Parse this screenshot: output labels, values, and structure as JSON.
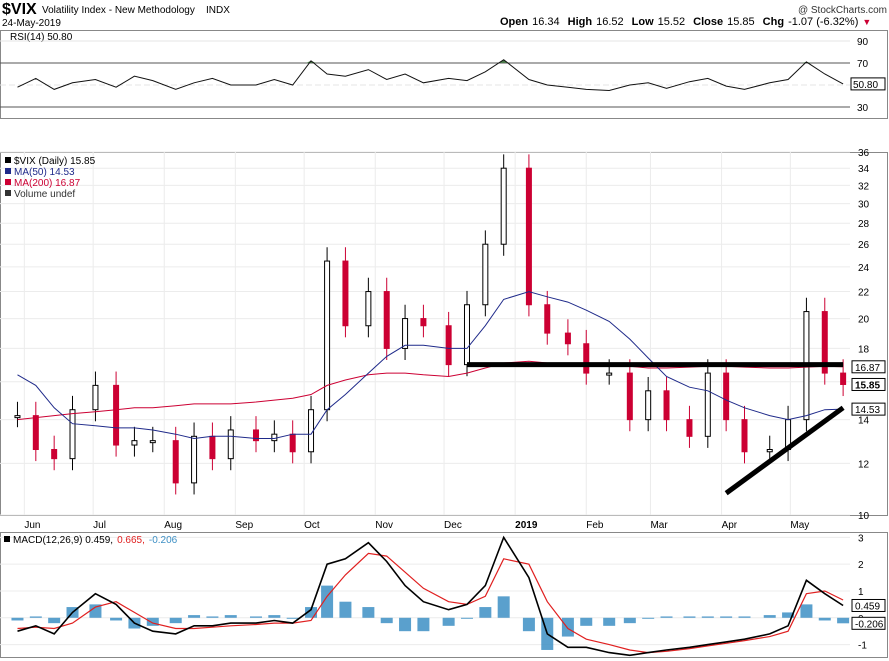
{
  "header": {
    "symbol": "$VIX",
    "name": "Volatility Index - New Methodology",
    "exchange": "INDX",
    "date": "24-May-2019",
    "watermark": "@ StockCharts.com",
    "ohlc": [
      {
        "label": "Open",
        "value": "16.34"
      },
      {
        "label": "High",
        "value": "16.52"
      },
      {
        "label": "Low",
        "value": "15.52"
      },
      {
        "label": "Close",
        "value": "15.85"
      },
      {
        "label": "Chg",
        "value": "-1.07 (-6.32%)"
      }
    ],
    "chg_marker": "▼"
  },
  "colors": {
    "price_up": "#000000",
    "price_down": "#cc0033",
    "ma50": "#1f2a8a",
    "ma200": "#cc0033",
    "rsi_fill": "#4a7a4a",
    "macd_hist": "#3d8fc4",
    "macd_signal": "#e02020",
    "macd_line": "#000000"
  },
  "chart_data": [
    {
      "type": "line",
      "panel": "rsi",
      "title": "RSI(14) 50.80",
      "last_value_label": "50.80",
      "ylim": [
        20,
        100
      ],
      "ticks": [
        30,
        50,
        70,
        90
      ],
      "overbought": 70,
      "oversold": 30,
      "x": [
        "2018-05-29",
        "2018-06-06",
        "2018-06-14",
        "2018-06-22",
        "2018-07-02",
        "2018-07-11",
        "2018-07-19",
        "2018-07-27",
        "2018-08-06",
        "2018-08-14",
        "2018-08-22",
        "2018-08-30",
        "2018-09-10",
        "2018-09-18",
        "2018-09-26",
        "2018-10-04",
        "2018-10-11",
        "2018-10-19",
        "2018-10-29",
        "2018-11-06",
        "2018-11-14",
        "2018-11-22",
        "2018-12-03",
        "2018-12-11",
        "2018-12-19",
        "2018-12-27",
        "2019-01-07",
        "2019-01-15",
        "2019-01-24",
        "2019-02-01",
        "2019-02-11",
        "2019-02-20",
        "2019-02-28",
        "2019-03-08",
        "2019-03-18",
        "2019-03-26",
        "2019-04-03",
        "2019-04-11",
        "2019-04-22",
        "2019-04-30",
        "2019-05-08",
        "2019-05-16",
        "2019-05-24"
      ],
      "values": [
        48,
        56,
        46,
        52,
        55,
        48,
        58,
        54,
        46,
        52,
        56,
        50,
        50,
        55,
        50,
        72,
        60,
        58,
        64,
        55,
        60,
        52,
        56,
        54,
        62,
        73,
        55,
        50,
        48,
        46,
        45,
        50,
        52,
        47,
        53,
        56,
        49,
        46,
        52,
        55,
        71,
        60,
        51
      ]
    },
    {
      "type": "line",
      "panel": "price",
      "title": "$VIX (Daily) 15.85",
      "ylim": [
        10,
        36
      ],
      "log_scale": true,
      "ticks": [
        10,
        12,
        14,
        16,
        18,
        20,
        22,
        24,
        26,
        28,
        30,
        32,
        34,
        36
      ],
      "x_tick_labels": [
        "Jun",
        "Jul",
        "Aug",
        "Sep",
        "Oct",
        "Nov",
        "Dec",
        "2019",
        "Feb",
        "Mar",
        "Apr",
        "May"
      ],
      "last_price_label": "15.85",
      "ma200_label": "16.87",
      "ma50_label": "14.53",
      "x": [
        "2018-05-29",
        "2018-06-06",
        "2018-06-14",
        "2018-06-22",
        "2018-07-02",
        "2018-07-11",
        "2018-07-19",
        "2018-07-27",
        "2018-08-06",
        "2018-08-14",
        "2018-08-22",
        "2018-08-30",
        "2018-09-10",
        "2018-09-18",
        "2018-09-26",
        "2018-10-04",
        "2018-10-11",
        "2018-10-19",
        "2018-10-29",
        "2018-11-06",
        "2018-11-14",
        "2018-11-22",
        "2018-12-03",
        "2018-12-11",
        "2018-12-19",
        "2018-12-27",
        "2019-01-07",
        "2019-01-15",
        "2019-01-24",
        "2019-02-01",
        "2019-02-11",
        "2019-02-20",
        "2019-02-28",
        "2019-03-08",
        "2019-03-18",
        "2019-03-26",
        "2019-04-03",
        "2019-04-11",
        "2019-04-22",
        "2019-04-30",
        "2019-05-08",
        "2019-05-16",
        "2019-05-24"
      ],
      "series": [
        {
          "name": "$VIX (Daily) 15.85",
          "values": [
            14.2,
            12.6,
            12.2,
            14.5,
            15.8,
            12.8,
            13.0,
            13.0,
            11.2,
            13.2,
            12.2,
            13.5,
            13.0,
            13.3,
            12.5,
            14.5,
            24.5,
            19.5,
            22.0,
            18.0,
            20.0,
            19.5,
            17.0,
            21.0,
            26.0,
            34.0,
            21.0,
            19.0,
            18.3,
            16.5,
            16.5,
            14.0,
            15.5,
            14.0,
            13.2,
            16.5,
            14.0,
            12.5,
            12.6,
            14.0,
            20.5,
            16.5,
            15.85
          ]
        },
        {
          "name": "MA(50) 14.53",
          "values": [
            16.4,
            15.8,
            14.6,
            13.8,
            13.7,
            13.6,
            13.6,
            13.5,
            13.3,
            13.1,
            13.2,
            13.2,
            13.1,
            13.1,
            13.3,
            13.3,
            14.5,
            15.3,
            16.5,
            17.5,
            18.2,
            18.2,
            18.0,
            18.0,
            19.5,
            21.4,
            22.0,
            21.6,
            21.2,
            20.6,
            19.8,
            18.6,
            17.4,
            16.3,
            15.7,
            15.5,
            15.0,
            14.6,
            14.2,
            14.0,
            14.2,
            14.5,
            14.53
          ]
        },
        {
          "name": "MA(200) 16.87",
          "values": [
            14.0,
            14.1,
            14.2,
            14.3,
            14.4,
            14.5,
            14.6,
            14.6,
            14.7,
            14.8,
            14.8,
            14.8,
            14.9,
            15.0,
            15.1,
            15.3,
            15.8,
            16.1,
            16.4,
            16.5,
            16.5,
            16.4,
            16.3,
            16.5,
            16.8,
            17.1,
            17.2,
            17.1,
            17.0,
            17.0,
            16.95,
            16.9,
            16.8,
            16.8,
            16.85,
            16.9,
            16.9,
            16.85,
            16.8,
            16.8,
            16.85,
            16.9,
            16.87
          ]
        }
      ],
      "annotations": [
        {
          "kind": "horizontal-line",
          "x": [
            "2018-12-11",
            "2019-05-24"
          ],
          "y": [
            17,
            17
          ]
        },
        {
          "kind": "trend-line",
          "x": [
            "2019-04-03",
            "2019-05-24"
          ],
          "y": [
            10.8,
            14.6
          ]
        }
      ]
    },
    {
      "type": "line",
      "panel": "macd",
      "title": "MACD(12,26,9) 0.459, 0.665, -0.206",
      "legend": {
        "macd": "0.459",
        "signal": "0.665",
        "hist": "-0.206"
      },
      "ylim": [
        -1.5,
        3.2
      ],
      "ticks": [
        -1,
        0,
        1,
        2,
        3
      ],
      "x": [
        "2018-05-29",
        "2018-06-06",
        "2018-06-14",
        "2018-06-22",
        "2018-07-02",
        "2018-07-11",
        "2018-07-19",
        "2018-07-27",
        "2018-08-06",
        "2018-08-14",
        "2018-08-22",
        "2018-08-30",
        "2018-09-10",
        "2018-09-18",
        "2018-09-26",
        "2018-10-04",
        "2018-10-11",
        "2018-10-19",
        "2018-10-29",
        "2018-11-06",
        "2018-11-14",
        "2018-11-22",
        "2018-12-03",
        "2018-12-11",
        "2018-12-19",
        "2018-12-27",
        "2019-01-07",
        "2019-01-15",
        "2019-01-24",
        "2019-02-01",
        "2019-02-11",
        "2019-02-20",
        "2019-02-28",
        "2019-03-08",
        "2019-03-18",
        "2019-03-26",
        "2019-04-03",
        "2019-04-11",
        "2019-04-22",
        "2019-04-30",
        "2019-05-08",
        "2019-05-16",
        "2019-05-24"
      ],
      "series": [
        {
          "name": "MACD",
          "values": [
            -0.5,
            -0.3,
            -0.6,
            0.2,
            0.9,
            0.5,
            -0.2,
            -0.5,
            -0.6,
            -0.3,
            -0.3,
            -0.2,
            -0.2,
            -0.1,
            -0.2,
            0.3,
            2.0,
            2.2,
            2.8,
            2.1,
            1.2,
            0.6,
            0.3,
            0.5,
            1.2,
            3.0,
            1.5,
            -0.6,
            -1.1,
            -1.1,
            -1.3,
            -1.4,
            -1.3,
            -1.2,
            -1.1,
            -1.0,
            -0.9,
            -0.8,
            -0.6,
            -0.3,
            1.4,
            0.9,
            0.459
          ]
        },
        {
          "name": "Signal",
          "values": [
            -0.4,
            -0.35,
            -0.4,
            -0.2,
            0.4,
            0.6,
            0.2,
            -0.2,
            -0.4,
            -0.4,
            -0.35,
            -0.3,
            -0.25,
            -0.2,
            -0.2,
            -0.1,
            0.8,
            1.6,
            2.4,
            2.3,
            1.7,
            1.1,
            0.6,
            0.5,
            0.8,
            2.2,
            2.0,
            0.6,
            -0.4,
            -0.8,
            -1.0,
            -1.2,
            -1.3,
            -1.25,
            -1.15,
            -1.05,
            -0.95,
            -0.85,
            -0.7,
            -0.5,
            0.9,
            1.0,
            0.665
          ]
        },
        {
          "name": "Histogram",
          "values": [
            -0.1,
            0.05,
            -0.2,
            0.4,
            0.5,
            -0.1,
            -0.4,
            -0.3,
            -0.2,
            0.1,
            0.05,
            0.1,
            0.05,
            0.1,
            0.0,
            0.4,
            1.2,
            0.6,
            0.4,
            -0.2,
            -0.5,
            -0.5,
            -0.3,
            0.0,
            0.4,
            0.8,
            -0.5,
            -1.2,
            -0.7,
            -0.3,
            -0.3,
            -0.2,
            0.0,
            0.05,
            0.05,
            0.05,
            0.05,
            0.05,
            0.1,
            0.2,
            0.5,
            -0.1,
            -0.206
          ]
        }
      ]
    }
  ]
}
